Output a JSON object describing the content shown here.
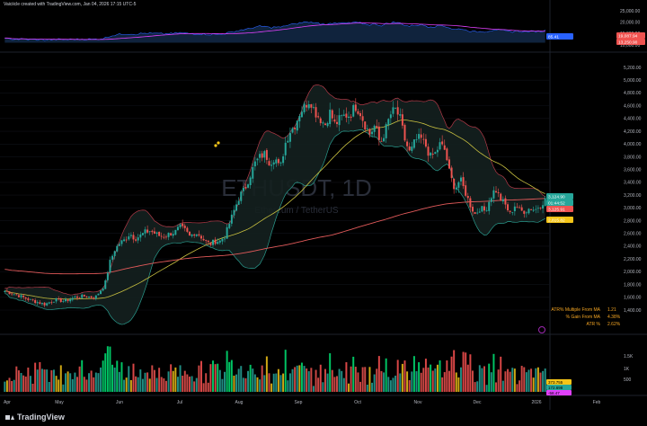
{
  "header": {
    "text": "Vaiciicle created with TradingView.com, Jan 04, 2026 17:15 UTC-5"
  },
  "brand": {
    "name": "TradingView"
  },
  "chart_data": {
    "type": "candlestick",
    "symbol": "ETHUSDT, 1D",
    "description": "Ethereum / TetherUS",
    "y_axis_main": {
      "ticks": [
        "5,200.00",
        "5,000.00",
        "4,800.00",
        "4,600.00",
        "4,400.00",
        "4,200.00",
        "4,000.00",
        "3,800.00",
        "3,600.00",
        "3,400.00",
        "3,200.00",
        "3,000.00",
        "2,800.00",
        "2,600.00",
        "2,400.00",
        "2,200.00",
        "2,000.00",
        "1,800.00",
        "1,600.00",
        "1,400.00"
      ],
      "ylim": [
        1300,
        5300
      ]
    },
    "y_axis_top": {
      "ticks": [
        "25,000.00",
        "20,000.00",
        "15,000.00",
        "10,000.00"
      ]
    },
    "y_axis_volume": {
      "ticks": [
        "1.5K",
        "1K",
        "500"
      ]
    },
    "x_axis": {
      "ticks": [
        "Apr",
        "May",
        "Jun",
        "Jul",
        "Aug",
        "Sep",
        "Oct",
        "Nov",
        "Dec",
        "2026",
        "Feb"
      ]
    },
    "price_badges": [
      {
        "value": "3,124.90",
        "color": "#26a69a"
      },
      {
        "value": "01:44:52",
        "color": "#26a69a"
      },
      {
        "value": "3,125.91",
        "color": "#ef5350"
      },
      {
        "value": "2,815.82",
        "color": "#f5c518"
      }
    ],
    "top_badges": [
      {
        "value": "85.41",
        "color": "#2962ff"
      },
      {
        "value": "19,087.94",
        "color": "#ef5350"
      },
      {
        "value": "13,250.90",
        "color": "#ef5350"
      }
    ],
    "volume_badges": [
      {
        "value": "373.755",
        "color": "#f5c518"
      },
      {
        "value": "172.698",
        "color": "#26a69a"
      },
      {
        "value": "-58.47",
        "color": "#e040fb"
      }
    ],
    "stats": [
      {
        "label": "ATR% Multiple From MA",
        "value": "1.21"
      },
      {
        "label": "% Gain From MA",
        "value": "4.38%"
      },
      {
        "label": "ATR %",
        "value": "2.62%"
      }
    ],
    "price_path": [
      [
        0,
        1700
      ],
      [
        3,
        1620
      ],
      [
        5,
        1560
      ],
      [
        8,
        1490
      ],
      [
        10,
        1560
      ],
      [
        12,
        1540
      ],
      [
        14,
        1600
      ],
      [
        16,
        1620
      ],
      [
        18,
        1590
      ],
      [
        20,
        1800
      ],
      [
        21,
        2150
      ],
      [
        22,
        2350
      ],
      [
        23,
        2450
      ],
      [
        24,
        2500
      ],
      [
        25,
        2600
      ],
      [
        26,
        2520
      ],
      [
        27,
        2560
      ],
      [
        28,
        2620
      ],
      [
        29,
        2640
      ],
      [
        30,
        2600
      ],
      [
        31,
        2560
      ],
      [
        32,
        2560
      ],
      [
        33,
        2600
      ],
      [
        34,
        2620
      ],
      [
        35,
        2700
      ],
      [
        36,
        2650
      ],
      [
        37,
        2550
      ],
      [
        38,
        2620
      ],
      [
        39,
        2570
      ],
      [
        40,
        2480
      ],
      [
        41,
        2430
      ],
      [
        42,
        2480
      ],
      [
        43,
        2480
      ],
      [
        44,
        2560
      ],
      [
        45,
        2780
      ],
      [
        46,
        3000
      ],
      [
        47,
        3200
      ],
      [
        48,
        3300
      ],
      [
        49,
        3500
      ],
      [
        50,
        3700
      ],
      [
        51,
        3800
      ],
      [
        52,
        3850
      ],
      [
        53,
        3700
      ],
      [
        54,
        3800
      ],
      [
        55,
        3600
      ],
      [
        56,
        4000
      ],
      [
        57,
        4200
      ],
      [
        58,
        4300
      ],
      [
        59,
        4500
      ],
      [
        60,
        4600
      ],
      [
        61,
        4700
      ],
      [
        62,
        4500
      ],
      [
        63,
        4400
      ],
      [
        64,
        4300
      ],
      [
        65,
        4500
      ],
      [
        66,
        4300
      ],
      [
        67,
        4400
      ],
      [
        68,
        4450
      ],
      [
        69,
        4450
      ],
      [
        70,
        4600
      ],
      [
        71,
        4500
      ],
      [
        72,
        4300
      ],
      [
        73,
        4150
      ],
      [
        74,
        4300
      ],
      [
        75,
        4000
      ],
      [
        76,
        4200
      ],
      [
        77,
        4450
      ],
      [
        78,
        4550
      ],
      [
        79,
        4400
      ],
      [
        80,
        4050
      ],
      [
        81,
        3850
      ],
      [
        82,
        4050
      ],
      [
        83,
        4100
      ],
      [
        84,
        4000
      ],
      [
        85,
        3800
      ],
      [
        86,
        3850
      ],
      [
        87,
        4000
      ],
      [
        88,
        3900
      ],
      [
        89,
        3500
      ],
      [
        90,
        3300
      ],
      [
        91,
        3450
      ],
      [
        92,
        3250
      ],
      [
        93,
        3050
      ],
      [
        94,
        2900
      ],
      [
        95,
        3000
      ],
      [
        96,
        2950
      ],
      [
        97,
        3150
      ],
      [
        98,
        3300
      ],
      [
        99,
        3150
      ],
      [
        100,
        3050
      ],
      [
        101,
        2900
      ],
      [
        102,
        3050
      ],
      [
        103,
        2950
      ],
      [
        104,
        2950
      ],
      [
        105,
        3000
      ],
      [
        106,
        2970
      ],
      [
        107,
        3050
      ],
      [
        108,
        3125
      ]
    ]
  },
  "colors": {
    "up": "#26a69a",
    "down": "#ef5350",
    "ma_long": "#e25a5a",
    "ma_short": "#c8c040",
    "bb": "#b23a48",
    "bb_low": "#2a9d8f",
    "top_pink": "#e040fb",
    "top_blue": "#2962ff"
  }
}
